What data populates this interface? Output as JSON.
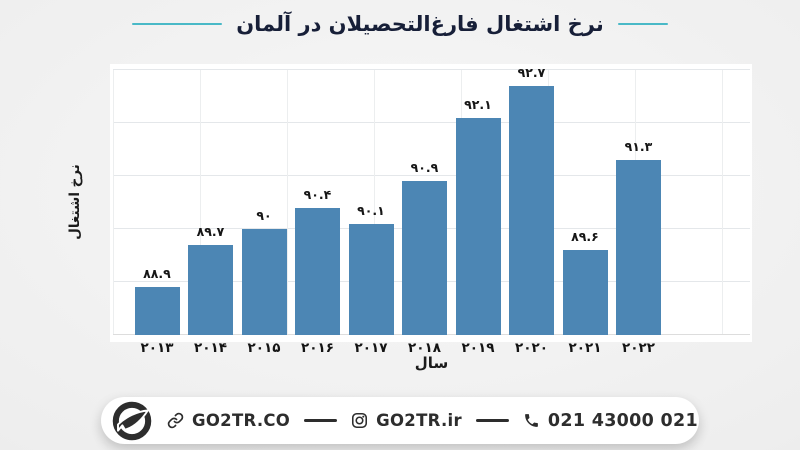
{
  "title": {
    "text": "نرخ اشتغال فارغ‌التحصیلان در آلمان"
  },
  "chart_data": {
    "type": "bar",
    "title": "نرخ اشتغال فارغ‌التحصیلان در آلمان",
    "xlabel": "سال",
    "ylabel": "نرخ اشتغال",
    "ylim": [
      88,
      93
    ],
    "grid": true,
    "legend": "none",
    "bar_color": "#4c86b4",
    "categories": [
      "2013",
      "2014",
      "2015",
      "2016",
      "2017",
      "2018",
      "2019",
      "2020",
      "2021",
      "2022"
    ],
    "categories_fa": [
      "۲۰۱۳",
      "۲۰۱۴",
      "۲۰۱۵",
      "۲۰۱۶",
      "۲۰۱۷",
      "۲۰۱۸",
      "۲۰۱۹",
      "۲۰۲۰",
      "۲۰۲۱",
      "۲۰۲۲"
    ],
    "values": [
      88.9,
      89.7,
      90.0,
      90.4,
      90.1,
      90.9,
      92.1,
      92.7,
      89.6,
      91.3
    ],
    "value_labels_fa": [
      "۸۸.۹",
      "۸۹.۷",
      "۹۰",
      "۹۰.۴",
      "۹۰.۱",
      "۹۰.۹",
      "۹۲.۱",
      "۹۲.۷",
      "۸۹.۶",
      "۹۱.۳"
    ]
  },
  "footer": {
    "website": "GO2TR.CO",
    "instagram": "GO2TR.ir",
    "phone": "021 43000 021"
  },
  "colors": {
    "accent_teal": "#49b9c7",
    "bar_blue": "#4c86b4",
    "title_text": "#171f38",
    "footer_text": "#2d2d2d",
    "plot_bg": "#ffffff",
    "page_bg": "#ececec"
  }
}
